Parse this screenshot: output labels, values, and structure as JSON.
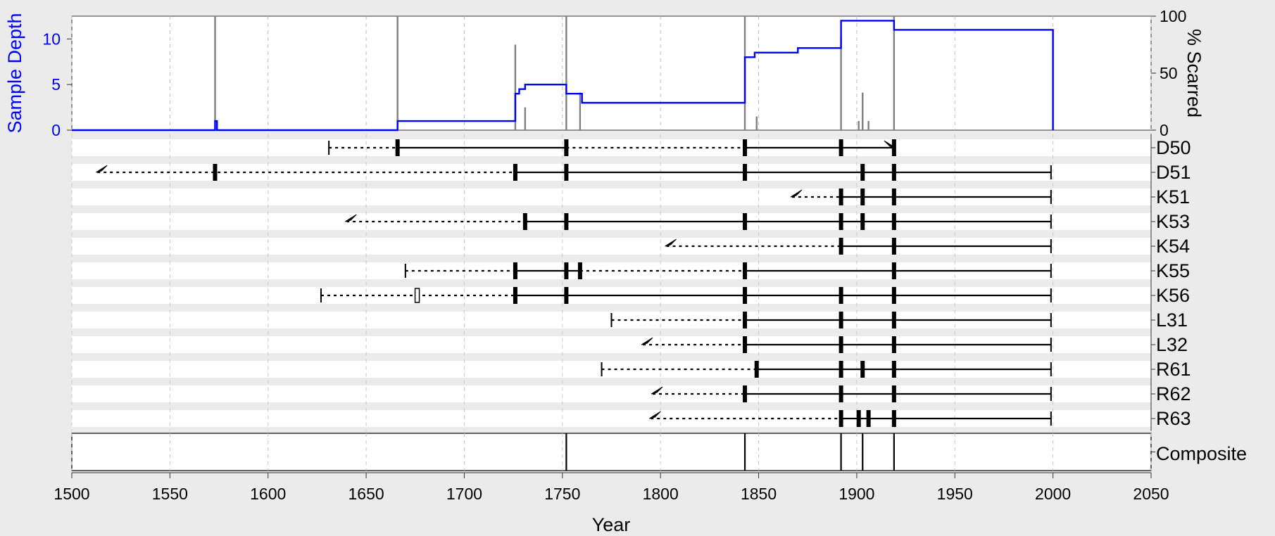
{
  "chart_data": {
    "type": "fire-history",
    "title": "",
    "xlabel": "Year",
    "xlim": [
      1500,
      2050
    ],
    "x_ticks": [
      1500,
      1550,
      1600,
      1650,
      1700,
      1750,
      1800,
      1850,
      1900,
      1950,
      2000,
      2050
    ],
    "grid": true,
    "top_panel": {
      "left_axis": {
        "label": "Sample Depth",
        "ticks": [
          0,
          5,
          10
        ],
        "ylim": [
          0,
          12.5
        ],
        "color": "#0000ff"
      },
      "right_axis": {
        "label": "% Scarred",
        "ticks": [
          0,
          50,
          100
        ],
        "ylim": [
          0,
          100
        ]
      },
      "sample_depth_step": [
        {
          "year": 1500,
          "depth": 0
        },
        {
          "year": 1573,
          "depth": 1
        },
        {
          "year": 1574,
          "depth": 0
        },
        {
          "year": 1666,
          "depth": 1
        },
        {
          "year": 1726,
          "depth": 4
        },
        {
          "year": 1728,
          "depth": 4.5
        },
        {
          "year": 1731,
          "depth": 5
        },
        {
          "year": 1752,
          "depth": 4
        },
        {
          "year": 1760,
          "depth": 3
        },
        {
          "year": 1843,
          "depth": 8
        },
        {
          "year": 1848,
          "depth": 8.5
        },
        {
          "year": 1870,
          "depth": 9
        },
        {
          "year": 1892,
          "depth": 12
        },
        {
          "year": 1919,
          "depth": 11
        },
        {
          "year": 2000,
          "depth": 0
        }
      ],
      "percent_scarred": [
        {
          "year": 1573,
          "pct": 100
        },
        {
          "year": 1666,
          "pct": 100
        },
        {
          "year": 1726,
          "pct": 75
        },
        {
          "year": 1731,
          "pct": 20
        },
        {
          "year": 1752,
          "pct": 100
        },
        {
          "year": 1759,
          "pct": 33
        },
        {
          "year": 1843,
          "pct": 100
        },
        {
          "year": 1849,
          "pct": 12
        },
        {
          "year": 1892,
          "pct": 83
        },
        {
          "year": 1901,
          "pct": 8
        },
        {
          "year": 1903,
          "pct": 33
        },
        {
          "year": 1906,
          "pct": 8
        },
        {
          "year": 1919,
          "pct": 100
        }
      ]
    },
    "series": [
      {
        "name": "D50",
        "start": 1631,
        "start_type": "pith",
        "end": 1919,
        "end_type": "bark_est",
        "segments": [
          {
            "from": 1631,
            "to": 1666,
            "style": "dashed"
          },
          {
            "from": 1666,
            "to": 1752,
            "style": "solid"
          },
          {
            "from": 1752,
            "to": 1843,
            "style": "dashed"
          },
          {
            "from": 1843,
            "to": 1919,
            "style": "solid"
          }
        ],
        "scars": [
          1666,
          1752,
          1843,
          1892,
          1919
        ],
        "injuries": []
      },
      {
        "name": "D51",
        "start": 1513,
        "start_type": "inner_est",
        "end": 1999,
        "end_type": "bark",
        "segments": [
          {
            "from": 1513,
            "to": 1726,
            "style": "dashed"
          },
          {
            "from": 1726,
            "to": 1999,
            "style": "solid"
          }
        ],
        "scars": [
          1573,
          1726,
          1752,
          1843,
          1903,
          1919
        ],
        "injuries": []
      },
      {
        "name": "K51",
        "start": 1867,
        "start_type": "inner_est",
        "end": 1999,
        "end_type": "bark",
        "segments": [
          {
            "from": 1867,
            "to": 1892,
            "style": "dashed"
          },
          {
            "from": 1892,
            "to": 1999,
            "style": "solid"
          }
        ],
        "scars": [
          1892,
          1903,
          1919
        ],
        "injuries": []
      },
      {
        "name": "K53",
        "start": 1640,
        "start_type": "inner_est",
        "end": 1999,
        "end_type": "bark",
        "segments": [
          {
            "from": 1640,
            "to": 1731,
            "style": "dashed"
          },
          {
            "from": 1731,
            "to": 1999,
            "style": "solid"
          }
        ],
        "scars": [
          1731,
          1752,
          1843,
          1892,
          1903,
          1919
        ],
        "injuries": []
      },
      {
        "name": "K54",
        "start": 1803,
        "start_type": "inner_est",
        "end": 1999,
        "end_type": "bark",
        "segments": [
          {
            "from": 1803,
            "to": 1892,
            "style": "dashed"
          },
          {
            "from": 1892,
            "to": 1999,
            "style": "solid"
          }
        ],
        "scars": [
          1892,
          1919
        ],
        "injuries": []
      },
      {
        "name": "K55",
        "start": 1670,
        "start_type": "pith",
        "end": 1999,
        "end_type": "bark",
        "segments": [
          {
            "from": 1670,
            "to": 1726,
            "style": "dashed"
          },
          {
            "from": 1726,
            "to": 1759,
            "style": "solid"
          },
          {
            "from": 1759,
            "to": 1843,
            "style": "dashed"
          },
          {
            "from": 1843,
            "to": 1999,
            "style": "solid"
          }
        ],
        "scars": [
          1726,
          1752,
          1759,
          1843,
          1919
        ],
        "injuries": []
      },
      {
        "name": "K56",
        "start": 1627,
        "start_type": "pith",
        "end": 1999,
        "end_type": "bark",
        "segments": [
          {
            "from": 1627,
            "to": 1726,
            "style": "dashed"
          },
          {
            "from": 1726,
            "to": 1999,
            "style": "solid"
          }
        ],
        "scars": [
          1726,
          1752,
          1843,
          1892,
          1919
        ],
        "injuries": [
          1676
        ]
      },
      {
        "name": "L31",
        "start": 1775,
        "start_type": "pith",
        "end": 1999,
        "end_type": "bark",
        "segments": [
          {
            "from": 1775,
            "to": 1843,
            "style": "dashed"
          },
          {
            "from": 1843,
            "to": 1999,
            "style": "solid"
          }
        ],
        "scars": [
          1843,
          1892,
          1919
        ],
        "injuries": []
      },
      {
        "name": "L32",
        "start": 1791,
        "start_type": "inner_est",
        "end": 1999,
        "end_type": "bark",
        "segments": [
          {
            "from": 1791,
            "to": 1843,
            "style": "dashed"
          },
          {
            "from": 1843,
            "to": 1999,
            "style": "solid"
          }
        ],
        "scars": [
          1843,
          1892,
          1919
        ],
        "injuries": []
      },
      {
        "name": "R61",
        "start": 1770,
        "start_type": "pith",
        "end": 1999,
        "end_type": "bark",
        "segments": [
          {
            "from": 1770,
            "to": 1849,
            "style": "dashed"
          },
          {
            "from": 1849,
            "to": 1999,
            "style": "solid"
          }
        ],
        "scars": [
          1849,
          1892,
          1903,
          1919
        ],
        "injuries": []
      },
      {
        "name": "R62",
        "start": 1796,
        "start_type": "inner_est",
        "end": 1999,
        "end_type": "bark",
        "segments": [
          {
            "from": 1796,
            "to": 1843,
            "style": "dashed"
          },
          {
            "from": 1843,
            "to": 1999,
            "style": "solid"
          }
        ],
        "scars": [
          1843,
          1892,
          1919
        ],
        "injuries": []
      },
      {
        "name": "R63",
        "start": 1795,
        "start_type": "inner_est",
        "end": 1999,
        "end_type": "bark",
        "segments": [
          {
            "from": 1795,
            "to": 1892,
            "style": "dashed"
          },
          {
            "from": 1892,
            "to": 1999,
            "style": "solid"
          }
        ],
        "scars": [
          1892,
          1901,
          1906,
          1919
        ],
        "injuries": []
      }
    ],
    "composite": {
      "name": "Composite",
      "events": [
        1752,
        1843,
        1892,
        1903,
        1919
      ]
    }
  }
}
